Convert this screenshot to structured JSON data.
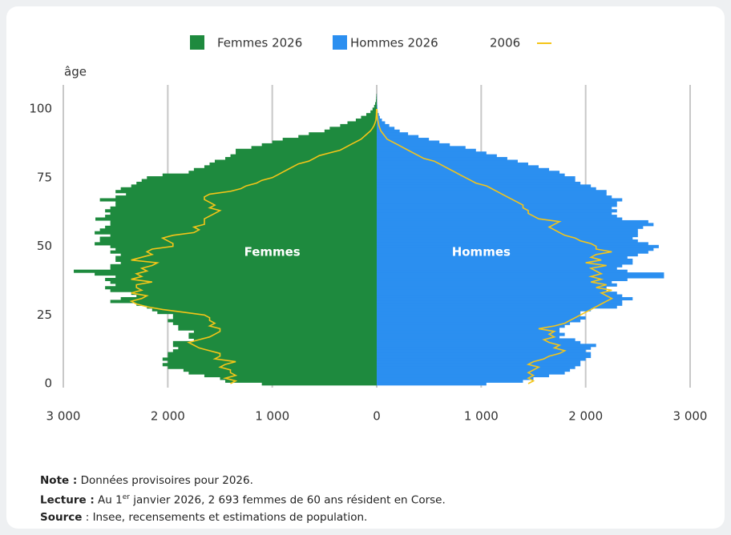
{
  "chart_data": {
    "type": "pyramid",
    "y_label": "âge",
    "annotations": [
      "Femmes",
      "Hommes"
    ],
    "y": [
      0,
      1,
      2,
      3,
      4,
      5,
      6,
      7,
      8,
      9,
      10,
      11,
      12,
      13,
      14,
      15,
      16,
      17,
      18,
      19,
      20,
      21,
      22,
      23,
      24,
      25,
      26,
      27,
      28,
      29,
      30,
      31,
      32,
      33,
      34,
      35,
      36,
      37,
      38,
      39,
      40,
      41,
      42,
      43,
      44,
      45,
      46,
      47,
      48,
      49,
      50,
      51,
      52,
      53,
      54,
      55,
      56,
      57,
      58,
      59,
      60,
      61,
      62,
      63,
      64,
      65,
      66,
      67,
      68,
      69,
      70,
      71,
      72,
      73,
      74,
      75,
      76,
      77,
      78,
      79,
      80,
      81,
      82,
      83,
      84,
      85,
      86,
      87,
      88,
      89,
      90,
      91,
      92,
      93,
      94,
      95,
      96,
      97,
      98,
      99,
      100,
      101,
      102,
      103,
      104,
      105
    ],
    "ylim": [
      -3,
      108
    ],
    "yticks": [
      0,
      25,
      50,
      75,
      100
    ],
    "xlim": [
      -3000,
      3000
    ],
    "xticks": [
      {
        "value": -3000,
        "label": "3 000"
      },
      {
        "value": -2000,
        "label": "2 000"
      },
      {
        "value": -1000,
        "label": "1 000"
      },
      0,
      {
        "value": 1000,
        "label": "1 000"
      },
      {
        "value": 2000,
        "label": "2 000"
      },
      {
        "value": 3000,
        "label": "3 000"
      }
    ],
    "grid": true,
    "series": [
      {
        "name": "Femmes 2026",
        "color": "#1e8a3e",
        "side": "left",
        "values": [
          1100,
          1450,
          1500,
          1650,
          1800,
          1850,
          2000,
          2050,
          2000,
          2050,
          2000,
          2000,
          1950,
          1900,
          1950,
          1950,
          1750,
          1800,
          1800,
          1750,
          1900,
          1900,
          1950,
          2000,
          1950,
          1950,
          2100,
          2150,
          2200,
          2300,
          2550,
          2450,
          2300,
          2350,
          2550,
          2600,
          2500,
          2550,
          2600,
          2500,
          2700,
          2900,
          2550,
          2550,
          2450,
          2500,
          2500,
          2450,
          2550,
          2500,
          2550,
          2700,
          2650,
          2650,
          2550,
          2700,
          2650,
          2600,
          2550,
          2550,
          2693,
          2600,
          2550,
          2600,
          2550,
          2500,
          2500,
          2650,
          2500,
          2400,
          2500,
          2450,
          2350,
          2300,
          2250,
          2200,
          2050,
          1800,
          1750,
          1650,
          1600,
          1550,
          1450,
          1400,
          1350,
          1350,
          1200,
          1100,
          1000,
          900,
          750,
          650,
          500,
          450,
          350,
          280,
          200,
          150,
          100,
          60,
          40,
          25,
          15,
          8,
          5,
          3
        ]
      },
      {
        "name": "Hommes 2026",
        "color": "#2b8ff0",
        "side": "right",
        "values": [
          1050,
          1400,
          1500,
          1650,
          1800,
          1850,
          1900,
          1950,
          1950,
          2000,
          2050,
          2050,
          2000,
          2050,
          2100,
          1950,
          1900,
          1750,
          1800,
          1750,
          1750,
          1800,
          1850,
          1950,
          2000,
          1950,
          1950,
          2050,
          2300,
          2350,
          2350,
          2450,
          2350,
          2300,
          2200,
          2200,
          2300,
          2250,
          2400,
          2750,
          2750,
          2400,
          2300,
          2350,
          2450,
          2450,
          2400,
          2500,
          2600,
          2650,
          2700,
          2600,
          2500,
          2450,
          2500,
          2500,
          2500,
          2550,
          2650,
          2600,
          2350,
          2300,
          2250,
          2300,
          2250,
          2300,
          2300,
          2350,
          2250,
          2200,
          2200,
          2100,
          2050,
          1950,
          1900,
          1900,
          1800,
          1750,
          1650,
          1550,
          1450,
          1350,
          1250,
          1150,
          1050,
          950,
          850,
          700,
          600,
          500,
          400,
          300,
          220,
          170,
          120,
          80,
          50,
          30,
          20,
          10,
          6,
          4,
          2,
          1,
          1,
          1
        ]
      }
    ],
    "line": {
      "name": "2006",
      "color": "#f5c518",
      "left": [
        1400,
        1350,
        1450,
        1350,
        1400,
        1400,
        1500,
        1450,
        1350,
        1550,
        1500,
        1500,
        1600,
        1700,
        1750,
        1800,
        1700,
        1600,
        1550,
        1500,
        1500,
        1600,
        1550,
        1600,
        1600,
        1650,
        1850,
        2050,
        2200,
        2300,
        2350,
        2250,
        2200,
        2350,
        2250,
        2300,
        2300,
        2150,
        2350,
        2250,
        2300,
        2200,
        2250,
        2150,
        2100,
        2350,
        2250,
        2150,
        2200,
        2150,
        1950,
        1950,
        2000,
        2050,
        1950,
        1750,
        1700,
        1750,
        1650,
        1650,
        1650,
        1600,
        1550,
        1500,
        1600,
        1550,
        1600,
        1650,
        1650,
        1600,
        1400,
        1300,
        1250,
        1150,
        1100,
        1000,
        950,
        900,
        850,
        800,
        750,
        650,
        600,
        550,
        450,
        350,
        300,
        250,
        200,
        150,
        120,
        90,
        60,
        40,
        25,
        15,
        8,
        5,
        3,
        2,
        1,
        null,
        null,
        null,
        null,
        null
      ],
      "right": [
        1450,
        1500,
        1450,
        1500,
        1450,
        1500,
        1550,
        1450,
        1500,
        1600,
        1650,
        1750,
        1800,
        1700,
        1750,
        1650,
        1600,
        1700,
        1650,
        1700,
        1550,
        1700,
        1800,
        1850,
        1900,
        1950,
        2000,
        2050,
        2100,
        2150,
        2200,
        2250,
        2200,
        2150,
        2250,
        2100,
        2200,
        2050,
        2150,
        2050,
        2150,
        2100,
        2050,
        2200,
        2000,
        2150,
        2050,
        2100,
        2250,
        2100,
        2100,
        2050,
        1950,
        1900,
        1800,
        1750,
        1700,
        1650,
        1700,
        1750,
        1550,
        1500,
        1450,
        1450,
        1400,
        1400,
        1350,
        1300,
        1250,
        1200,
        1150,
        1100,
        1050,
        950,
        900,
        850,
        800,
        750,
        700,
        650,
        600,
        550,
        450,
        400,
        350,
        300,
        250,
        200,
        150,
        100,
        80,
        60,
        40,
        30,
        20,
        15,
        10,
        5,
        3,
        2,
        1,
        null,
        null,
        null,
        null,
        null
      ]
    },
    "notes": [
      {
        "label": "Note :",
        "parts": [
          " Données provisoires pour 2026."
        ]
      },
      {
        "label": "Lecture :",
        "parts": [
          " Au 1",
          "er",
          " janvier 2026, 2 693 femmes de 60 ans résident en Corse."
        ]
      },
      {
        "label": "Source",
        "parts": [
          " : Insee, recensements et estimations de population."
        ]
      }
    ]
  }
}
